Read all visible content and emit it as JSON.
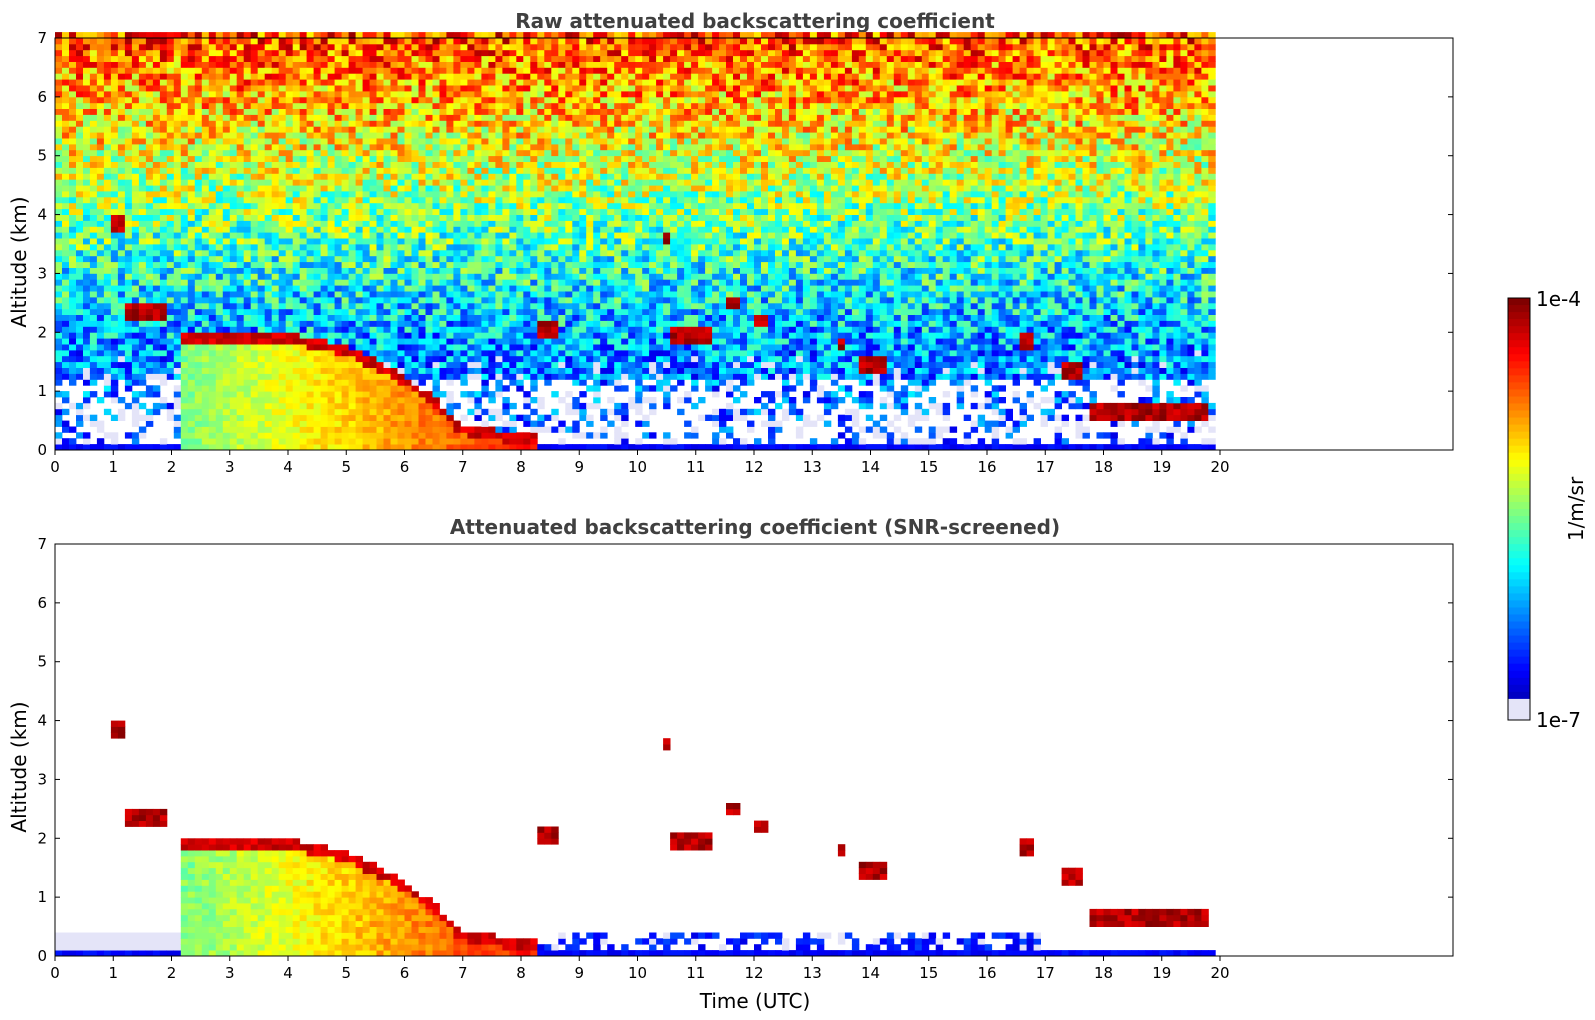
{
  "chart_data": [
    {
      "type": "heatmap",
      "title": "Raw attenuated backscattering coefficient",
      "xlabel": "",
      "ylabel": "Altitude (km)",
      "xlim": [
        0,
        24
      ],
      "ylim": [
        0,
        7
      ],
      "x_ticks": [
        0,
        1,
        2,
        3,
        4,
        5,
        6,
        7,
        8,
        9,
        10,
        11,
        12,
        13,
        14,
        15,
        16,
        17,
        18,
        19,
        20
      ],
      "y_ticks": [
        0,
        1,
        2,
        3,
        4,
        5,
        6,
        7
      ],
      "data_end_time": 19.83,
      "noise": "full",
      "boundary_layer": [
        [
          2.2,
          1.9
        ],
        [
          3,
          1.9
        ],
        [
          4,
          1.9
        ],
        [
          5,
          1.7
        ],
        [
          6,
          1.2
        ],
        [
          6.5,
          0.8
        ],
        [
          7,
          0.35
        ],
        [
          8,
          0.2
        ],
        [
          8.3,
          0.2
        ]
      ],
      "cloud_layers": [
        {
          "t0": 0.95,
          "t1": 1.15,
          "alt": 3.85
        },
        {
          "t0": 1.2,
          "t1": 1.9,
          "alt": 2.35
        },
        {
          "t0": 8.3,
          "t1": 8.7,
          "alt": 2.05
        },
        {
          "t0": 10.4,
          "t1": 10.55,
          "alt": 3.6
        },
        {
          "t0": 10.6,
          "t1": 11.3,
          "alt": 1.95
        },
        {
          "t0": 11.5,
          "t1": 11.7,
          "alt": 2.5
        },
        {
          "t0": 12.0,
          "t1": 12.2,
          "alt": 2.2
        },
        {
          "t0": 13.4,
          "t1": 13.6,
          "alt": 1.8
        },
        {
          "t0": 13.8,
          "t1": 14.3,
          "alt": 1.45
        },
        {
          "t0": 16.5,
          "t1": 16.8,
          "alt": 1.85
        },
        {
          "t0": 17.3,
          "t1": 17.6,
          "alt": 1.35
        },
        {
          "t0": 17.7,
          "t1": 19.8,
          "alt": 0.65
        }
      ]
    },
    {
      "type": "heatmap",
      "title": "Attenuated backscattering coefficient (SNR-screened)",
      "xlabel": "Time (UTC)",
      "ylabel": "Altitude (km)",
      "xlim": [
        0,
        24
      ],
      "ylim": [
        0,
        7
      ],
      "x_ticks": [
        0,
        1,
        2,
        3,
        4,
        5,
        6,
        7,
        8,
        9,
        10,
        11,
        12,
        13,
        14,
        15,
        16,
        17,
        18,
        19,
        20
      ],
      "y_ticks": [
        0,
        1,
        2,
        3,
        4,
        5,
        6,
        7
      ],
      "data_end_time": 19.83,
      "noise": "screened",
      "boundary_layer": [
        [
          2.2,
          1.9
        ],
        [
          3,
          1.9
        ],
        [
          4,
          1.9
        ],
        [
          5,
          1.7
        ],
        [
          6,
          1.2
        ],
        [
          6.5,
          0.8
        ],
        [
          7,
          0.35
        ],
        [
          8,
          0.2
        ],
        [
          8.3,
          0.2
        ]
      ],
      "cloud_layers": [
        {
          "t0": 0.95,
          "t1": 1.15,
          "alt": 3.85
        },
        {
          "t0": 1.2,
          "t1": 1.9,
          "alt": 2.35
        },
        {
          "t0": 8.3,
          "t1": 8.7,
          "alt": 2.05
        },
        {
          "t0": 10.4,
          "t1": 10.55,
          "alt": 3.6
        },
        {
          "t0": 10.6,
          "t1": 11.3,
          "alt": 1.95
        },
        {
          "t0": 11.5,
          "t1": 11.7,
          "alt": 2.5
        },
        {
          "t0": 12.0,
          "t1": 12.2,
          "alt": 2.2
        },
        {
          "t0": 13.4,
          "t1": 13.6,
          "alt": 1.8
        },
        {
          "t0": 13.8,
          "t1": 14.3,
          "alt": 1.45
        },
        {
          "t0": 16.5,
          "t1": 16.8,
          "alt": 1.85
        },
        {
          "t0": 17.3,
          "t1": 17.6,
          "alt": 1.35
        },
        {
          "t0": 17.7,
          "t1": 19.8,
          "alt": 0.65
        }
      ]
    }
  ],
  "colorbar": {
    "label": "1/m/sr",
    "max_label": "1e-4",
    "min_label": "1e-7",
    "colormap": "jet"
  }
}
